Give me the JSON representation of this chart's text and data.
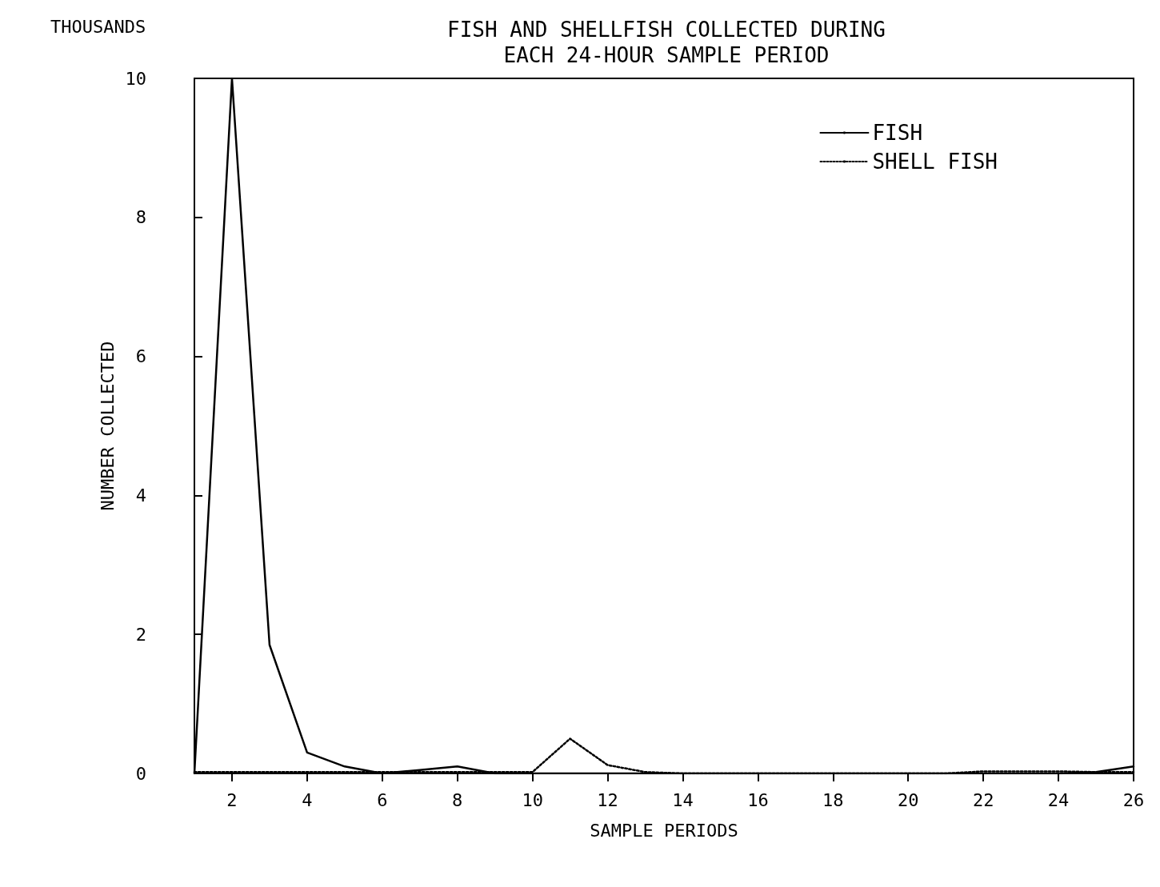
{
  "chart_data": {
    "type": "line",
    "title": "FISH AND SHELLFISH COLLECTED DURING\nEACH 24-HOUR SAMPLE PERIOD",
    "xlabel": "SAMPLE PERIODS",
    "ylabel": "NUMBER COLLECTED",
    "annotations": [
      "THOUSANDS"
    ],
    "x": [
      1,
      2,
      3,
      4,
      5,
      6,
      7,
      8,
      9,
      10,
      11,
      12,
      13,
      14,
      15,
      16,
      17,
      18,
      19,
      20,
      21,
      22,
      23,
      24,
      25,
      26
    ],
    "series": [
      {
        "name": "FISH",
        "color": "#000000",
        "line_style": "solid",
        "values": [
          0,
          10,
          1.85,
          0.3,
          0.1,
          0,
          0.05,
          0.1,
          0,
          0,
          0,
          0,
          0,
          0,
          0,
          0,
          0,
          0,
          0,
          0,
          0,
          0,
          0,
          0,
          0.02,
          0.1
        ]
      },
      {
        "name": "SHELL FISH",
        "color": "#000000",
        "line_style": "dotted",
        "values": [
          0.02,
          0.02,
          0.02,
          0.02,
          0.02,
          0.02,
          0.02,
          0.02,
          0.02,
          0.02,
          0.5,
          0.12,
          0.02,
          0,
          0,
          0,
          0,
          0,
          0,
          0,
          0,
          0.03,
          0.03,
          0.03,
          0.02,
          0.02
        ]
      }
    ],
    "xlim": [
      1,
      26
    ],
    "xticks": [
      2,
      4,
      6,
      8,
      10,
      12,
      14,
      16,
      18,
      20,
      22,
      24,
      26
    ],
    "ylim": [
      0,
      10
    ],
    "yticks": [
      0,
      2,
      4,
      6,
      8,
      10
    ],
    "grid": false,
    "legend": "top right",
    "marker": "none"
  }
}
